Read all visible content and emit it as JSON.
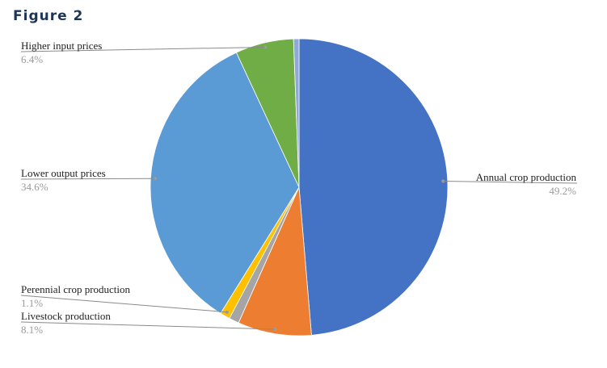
{
  "figure_title": "Figure 2",
  "chart_data": {
    "type": "pie",
    "title": "",
    "slices": [
      {
        "label": "Annual crop production",
        "value": 49.2,
        "value_text": "49.2%",
        "color": "#4472c4"
      },
      {
        "label": "Livestock production",
        "value": 8.1,
        "value_text": "8.1%",
        "color": "#ed7d31"
      },
      {
        "label": "",
        "value": 1.1,
        "value_text": "",
        "color": "#a5a5a5"
      },
      {
        "label": "Perennial crop production",
        "value": 1.1,
        "value_text": "1.1%",
        "color": "#ffc000"
      },
      {
        "label": "Lower output prices",
        "value": 34.6,
        "value_text": "34.6%",
        "color": "#5b9bd5"
      },
      {
        "label": "Higher input prices",
        "value": 6.4,
        "value_text": "6.4%",
        "color": "#70ad47"
      },
      {
        "label": "",
        "value": 0.6,
        "value_text": "",
        "color": "#8fa9d6"
      }
    ],
    "start": "12 o'clock",
    "direction": "clockwise",
    "legend": "none"
  }
}
